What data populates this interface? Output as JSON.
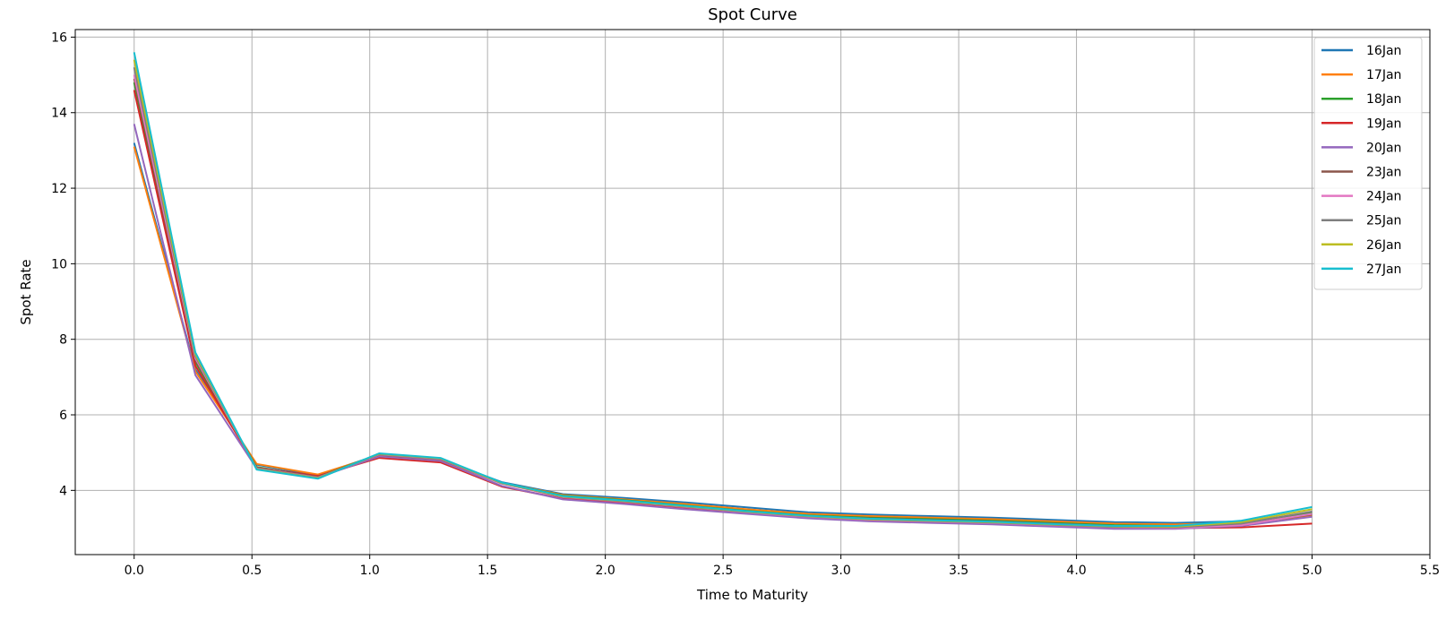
{
  "chart_data": {
    "type": "line",
    "title": "Spot Curve",
    "xlabel": "Time to Maturity",
    "ylabel": "Spot Rate",
    "xlim": [
      -0.25,
      5.5
    ],
    "ylim": [
      2.3,
      16.2
    ],
    "xticks": [
      0.0,
      0.5,
      1.0,
      1.5,
      2.0,
      2.5,
      3.0,
      3.5,
      4.0,
      4.5,
      5.0,
      5.5
    ],
    "xtick_labels": [
      "0.0",
      "0.5",
      "1.0",
      "1.5",
      "2.0",
      "2.5",
      "3.0",
      "3.5",
      "4.0",
      "4.5",
      "5.0",
      "5.5"
    ],
    "yticks": [
      4,
      6,
      8,
      10,
      12,
      14,
      16
    ],
    "ytick_labels": [
      "4",
      "6",
      "8",
      "10",
      "12",
      "14",
      "16"
    ],
    "grid": true,
    "legend_position": "top-right",
    "x": [
      0.0,
      0.26,
      0.52,
      0.78,
      1.04,
      1.3,
      1.56,
      1.82,
      2.08,
      2.34,
      2.6,
      2.86,
      3.12,
      3.38,
      3.64,
      3.9,
      4.16,
      4.42,
      4.7,
      5.0
    ],
    "series": [
      {
        "name": "16Jan",
        "color": "#1f77b4",
        "values": [
          13.2,
          7.2,
          4.68,
          4.4,
          4.95,
          4.82,
          4.22,
          3.9,
          3.8,
          3.68,
          3.55,
          3.42,
          3.36,
          3.32,
          3.28,
          3.22,
          3.16,
          3.14,
          3.18,
          3.38
        ]
      },
      {
        "name": "17Jan",
        "color": "#ff7f0e",
        "values": [
          13.1,
          7.15,
          4.7,
          4.42,
          4.93,
          4.8,
          4.2,
          3.88,
          3.76,
          3.64,
          3.5,
          3.38,
          3.32,
          3.28,
          3.24,
          3.18,
          3.12,
          3.1,
          3.14,
          3.32
        ]
      },
      {
        "name": "18Jan",
        "color": "#2ca02c",
        "values": [
          14.8,
          7.4,
          4.62,
          4.36,
          4.96,
          4.84,
          4.2,
          3.86,
          3.74,
          3.6,
          3.46,
          3.34,
          3.28,
          3.24,
          3.2,
          3.14,
          3.08,
          3.06,
          3.12,
          3.4
        ]
      },
      {
        "name": "19Jan",
        "color": "#d62728",
        "values": [
          14.6,
          7.3,
          4.6,
          4.38,
          4.86,
          4.74,
          4.1,
          3.78,
          3.68,
          3.54,
          3.4,
          3.3,
          3.22,
          3.18,
          3.14,
          3.08,
          3.02,
          3.0,
          3.02,
          3.12
        ]
      },
      {
        "name": "20Jan",
        "color": "#9467bd",
        "values": [
          13.7,
          7.05,
          4.58,
          4.34,
          4.9,
          4.78,
          4.12,
          3.76,
          3.64,
          3.5,
          3.38,
          3.26,
          3.18,
          3.14,
          3.1,
          3.04,
          2.98,
          2.98,
          3.06,
          3.3
        ]
      },
      {
        "name": "23Jan",
        "color": "#8c564b",
        "values": [
          14.9,
          7.45,
          4.6,
          4.36,
          4.94,
          4.82,
          4.18,
          3.84,
          3.72,
          3.58,
          3.44,
          3.32,
          3.26,
          3.22,
          3.18,
          3.12,
          3.06,
          3.04,
          3.1,
          3.36
        ]
      },
      {
        "name": "24Jan",
        "color": "#e377c2",
        "values": [
          15.0,
          7.5,
          4.58,
          4.34,
          4.95,
          4.83,
          4.18,
          3.82,
          3.7,
          3.56,
          3.42,
          3.3,
          3.22,
          3.18,
          3.14,
          3.08,
          3.02,
          3.0,
          3.08,
          3.38
        ]
      },
      {
        "name": "25Jan",
        "color": "#7f7f7f",
        "values": [
          15.2,
          7.55,
          4.57,
          4.33,
          4.96,
          4.84,
          4.19,
          3.83,
          3.71,
          3.57,
          3.43,
          3.31,
          3.23,
          3.19,
          3.15,
          3.09,
          3.03,
          3.02,
          3.12,
          3.44
        ]
      },
      {
        "name": "26Jan",
        "color": "#bcbd22",
        "values": [
          15.4,
          7.6,
          4.56,
          4.32,
          4.97,
          4.85,
          4.2,
          3.84,
          3.72,
          3.58,
          3.44,
          3.32,
          3.24,
          3.2,
          3.16,
          3.1,
          3.05,
          3.04,
          3.16,
          3.5
        ]
      },
      {
        "name": "27Jan",
        "color": "#17becf",
        "values": [
          15.6,
          7.65,
          4.55,
          4.31,
          4.98,
          4.86,
          4.21,
          3.85,
          3.73,
          3.59,
          3.45,
          3.33,
          3.25,
          3.21,
          3.17,
          3.11,
          3.06,
          3.06,
          3.2,
          3.56
        ]
      }
    ]
  }
}
